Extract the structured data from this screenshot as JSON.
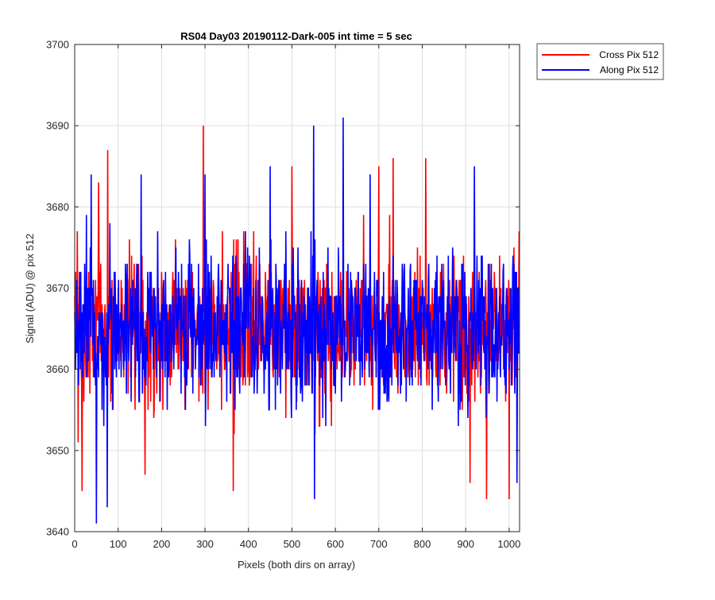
{
  "chart_data": {
    "type": "line",
    "title": "RS04 Day03 20190112-Dark-005 int time = 5 sec",
    "xlabel": "Pixels (both dirs on array)",
    "ylabel": "Signal (ADU) @ pix 512",
    "xlim": [
      0,
      1024
    ],
    "ylim": [
      3640,
      3700
    ],
    "xticks": [
      0,
      100,
      200,
      300,
      400,
      500,
      600,
      700,
      800,
      900,
      1000
    ],
    "yticks": [
      3640,
      3650,
      3660,
      3670,
      3680,
      3690,
      3700
    ],
    "grid": true,
    "legend_position": "outside-top-right",
    "n_points": 1024,
    "series": [
      {
        "name": "Cross Pix 512",
        "color": "#ff0000",
        "noise_baseline": 3665,
        "x": [
          0,
          8,
          17,
          55,
          76,
          162,
          296,
          365,
          367,
          500,
          700,
          733,
          808,
          910,
          948,
          1000,
          1023
        ],
        "values": [
          3669,
          3651,
          3645,
          3683,
          3687,
          3647,
          3690,
          3645,
          3652,
          3685,
          3685,
          3686,
          3686,
          3646,
          3644,
          3644,
          3677
        ]
      },
      {
        "name": "Along Pix 512",
        "color": "#0000ff",
        "noise_baseline": 3665,
        "x": [
          0,
          38,
          50,
          75,
          153,
          300,
          450,
          550,
          552,
          618,
          680,
          920,
          1018
        ],
        "values": [
          3667,
          3684,
          3641,
          3643,
          3684,
          3684,
          3685,
          3690,
          3644,
          3691,
          3684,
          3685,
          3646
        ]
      }
    ]
  }
}
